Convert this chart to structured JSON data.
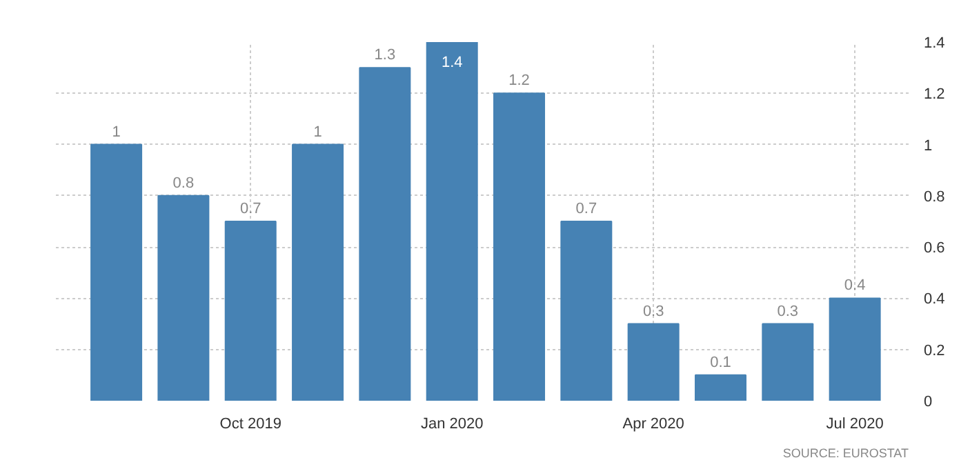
{
  "chart_data": {
    "type": "bar",
    "categories": [
      null,
      null,
      "Oct 2019",
      null,
      null,
      "Jan 2020",
      null,
      null,
      "Apr 2020",
      null,
      null,
      "Jul 2020"
    ],
    "values": [
      1,
      0.8,
      0.7,
      1,
      1.3,
      1.4,
      1.2,
      0.7,
      0.3,
      0.1,
      0.3,
      0.4
    ],
    "color": "#4682b4",
    "ylim": [
      0,
      1.4
    ],
    "yticks": [
      0,
      0.2,
      0.4,
      0.6,
      0.8,
      1,
      1.2,
      1.4
    ],
    "grid": true,
    "data_labels": true,
    "annotations": [
      "SOURCE: EUROSTAT"
    ]
  }
}
